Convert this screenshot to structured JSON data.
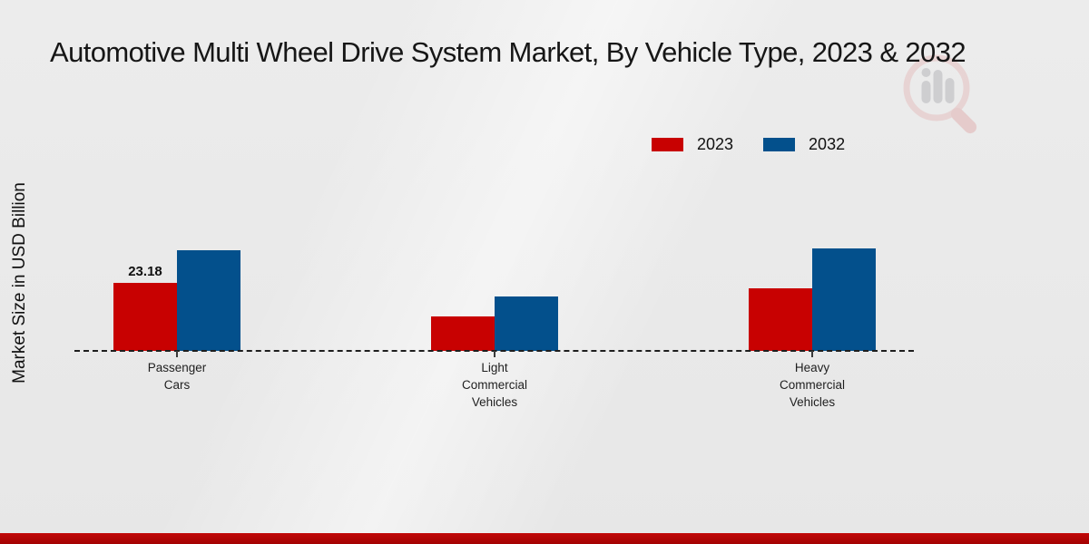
{
  "title": "Automotive Multi Wheel Drive System Market, By Vehicle Type, 2023 & 2032",
  "y_axis_label": "Market Size in USD Billion",
  "legend": {
    "position": "top-right",
    "items": [
      {
        "label": "2023",
        "color": "#c80101"
      },
      {
        "label": "2032",
        "color": "#03508c"
      }
    ]
  },
  "colors": {
    "series_2023": "#c80101",
    "series_2032": "#03508c",
    "background": "#e9e9e9",
    "axis_line": "#1e1e1e",
    "footer_bar": "#b30505",
    "title_text": "#161616"
  },
  "watermark_icon": "magnifier-bar-chart-logo",
  "chart_data": {
    "type": "bar",
    "title": "Automotive Multi Wheel Drive System Market, By Vehicle Type, 2023 & 2032",
    "categories": [
      "Passenger Cars",
      "Light Commercial Vehicles",
      "Heavy Commercial Vehicles"
    ],
    "category_label_lines": [
      [
        "Passenger",
        "Cars"
      ],
      [
        "Light",
        "Commercial",
        "Vehicles"
      ],
      [
        "Heavy",
        "Commercial",
        "Vehicles"
      ]
    ],
    "series": [
      {
        "name": "2023",
        "color": "#c80101",
        "values": [
          23.18,
          11.7,
          21.3
        ]
      },
      {
        "name": "2032",
        "color": "#03508c",
        "values": [
          34.3,
          18.5,
          34.9
        ]
      }
    ],
    "value_labels": [
      {
        "series_index": 0,
        "category_index": 0,
        "text": "23.18"
      }
    ],
    "xlabel": "",
    "ylabel": "Market Size in USD Billion",
    "ylim": [
      0,
      40
    ],
    "grid": false,
    "y_ticks_visible": false,
    "baseline_style": "dashed",
    "legend_position": "top-right"
  }
}
